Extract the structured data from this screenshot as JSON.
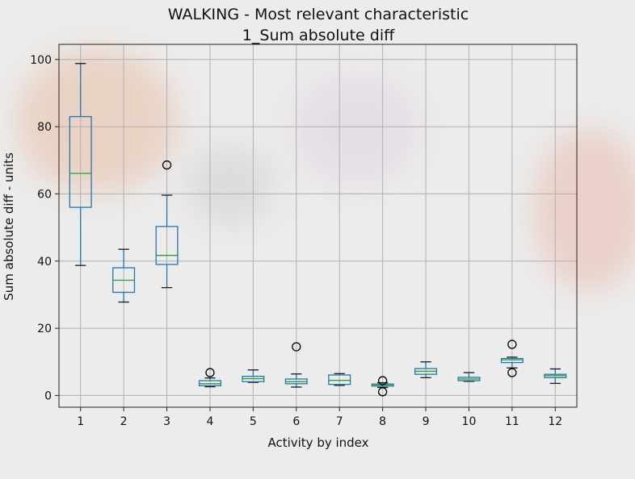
{
  "chart_data": {
    "type": "box",
    "title": "WALKING - Most relevant characteristic",
    "subtitle": "1_Sum absolute diff",
    "xlabel": "Activity by index",
    "ylabel": "Sum absolute diff - units",
    "ylim": [
      -3.5,
      104.5
    ],
    "yticks": [
      0,
      20,
      40,
      60,
      80,
      100
    ],
    "grid": true,
    "colors": {
      "box": "#1f77b4",
      "median": "#2ca02c",
      "grid": "#b0b0b0",
      "outlier": "#000000"
    },
    "categories": [
      "1",
      "2",
      "3",
      "4",
      "5",
      "6",
      "7",
      "8",
      "9",
      "10",
      "11",
      "12"
    ],
    "boxes": [
      {
        "category": "1",
        "whisker_low": 38.7,
        "q1": 56.0,
        "median": 66.1,
        "q3": 83.0,
        "whisker_high": 98.8,
        "outliers": []
      },
      {
        "category": "2",
        "whisker_low": 27.8,
        "q1": 30.7,
        "median": 34.3,
        "q3": 38.0,
        "whisker_high": 43.5,
        "outliers": []
      },
      {
        "category": "3",
        "whisker_low": 32.1,
        "q1": 39.0,
        "median": 41.7,
        "q3": 50.3,
        "whisker_high": 59.6,
        "outliers": [
          68.6
        ]
      },
      {
        "category": "4",
        "whisker_low": 2.6,
        "q1": 2.9,
        "median": 3.5,
        "q3": 4.4,
        "whisker_high": 5.2,
        "outliers": [
          6.8
        ]
      },
      {
        "category": "5",
        "whisker_low": 3.9,
        "q1": 4.1,
        "median": 5.0,
        "q3": 5.7,
        "whisker_high": 7.6,
        "outliers": []
      },
      {
        "category": "6",
        "whisker_low": 2.5,
        "q1": 3.5,
        "median": 4.1,
        "q3": 4.9,
        "whisker_high": 6.4,
        "outliers": [
          14.5
        ]
      },
      {
        "category": "7",
        "whisker_low": 3.0,
        "q1": 3.3,
        "median": 4.5,
        "q3": 6.1,
        "whisker_high": 6.5,
        "outliers": []
      },
      {
        "category": "8",
        "whisker_low": 2.4,
        "q1": 2.8,
        "median": 3.2,
        "q3": 3.4,
        "whisker_high": 3.8,
        "outliers": [
          1.1,
          4.4
        ]
      },
      {
        "category": "9",
        "whisker_low": 5.3,
        "q1": 6.3,
        "median": 7.2,
        "q3": 8.0,
        "whisker_high": 10.0,
        "outliers": []
      },
      {
        "category": "10",
        "whisker_low": 4.2,
        "q1": 4.4,
        "median": 4.9,
        "q3": 5.4,
        "whisker_high": 6.8,
        "outliers": []
      },
      {
        "category": "11",
        "whisker_low": 8.2,
        "q1": 9.8,
        "median": 10.6,
        "q3": 11.0,
        "whisker_high": 11.4,
        "outliers": [
          6.8,
          15.2
        ]
      },
      {
        "category": "12",
        "whisker_low": 3.6,
        "q1": 5.3,
        "median": 5.9,
        "q3": 6.3,
        "whisker_high": 7.9,
        "outliers": []
      }
    ]
  }
}
